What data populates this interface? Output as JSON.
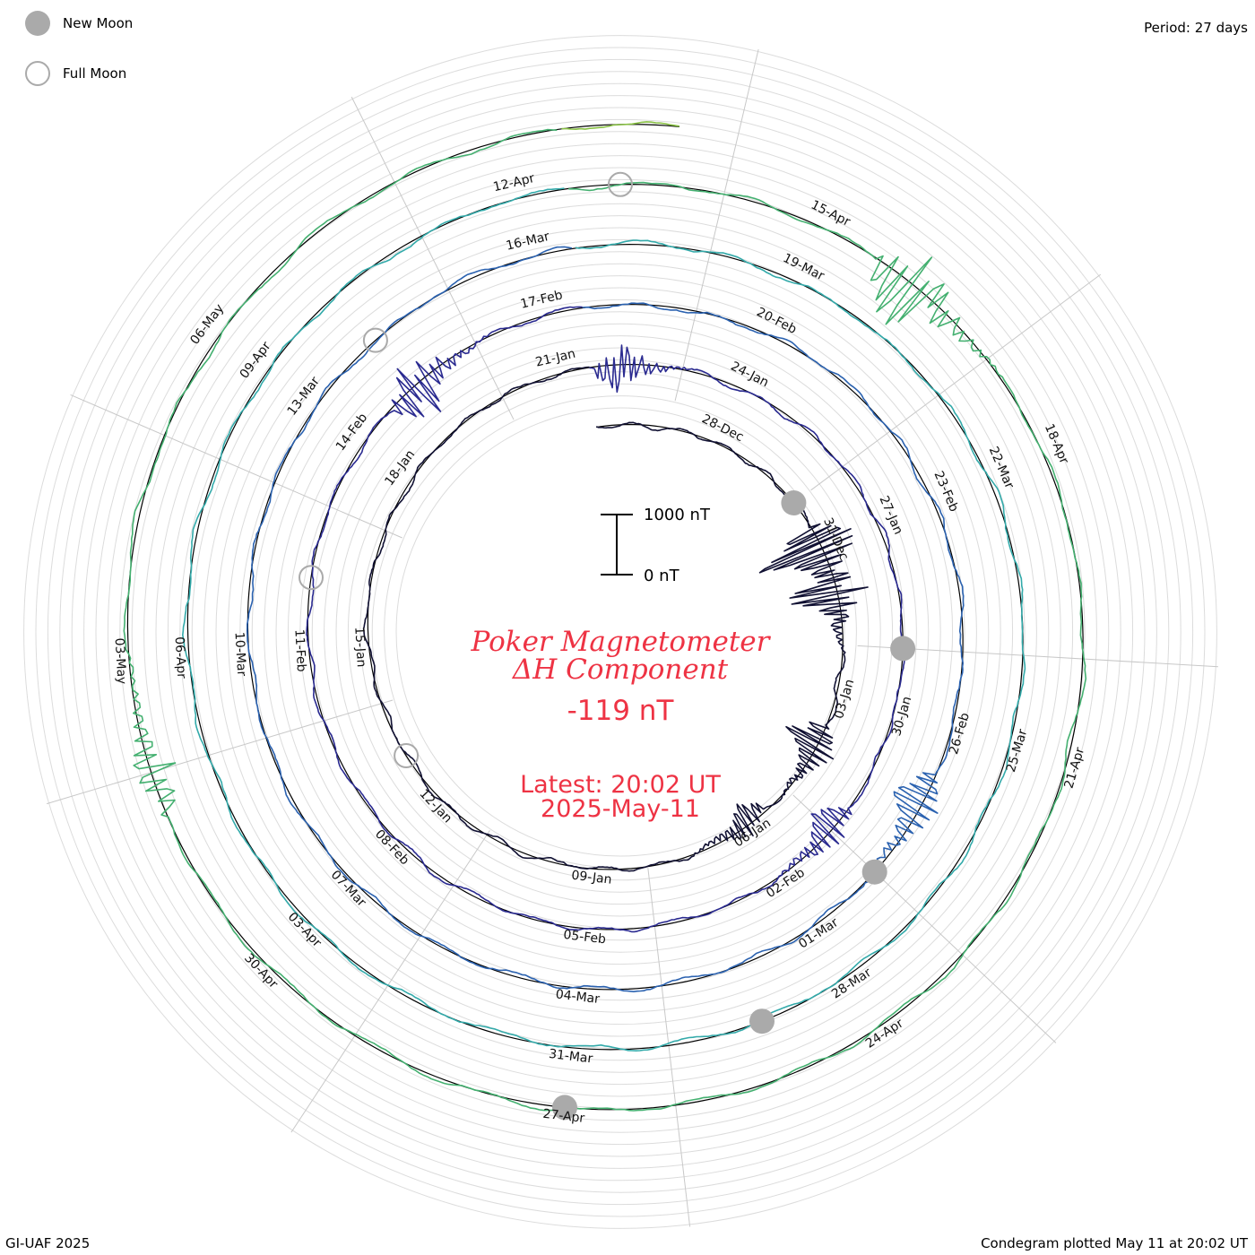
{
  "legend": {
    "new_moon_label": "New Moon",
    "full_moon_label": "Full Moon",
    "new_moon_color": "#aaaaaa",
    "full_moon_edge": "#aaaaaa"
  },
  "header": {
    "period_label": "Period: 27 days"
  },
  "footer": {
    "credit": "GI-UAF 2025",
    "plotted": "Condegram plotted May 11 at 20:02 UT"
  },
  "center": {
    "title_line1": "Poker Magnetometer",
    "title_line2": "ΔH Component",
    "value": "-119 nT",
    "latest_line1": "Latest: 20:02 UT",
    "latest_line2": "2025-May-11",
    "text_color": "#ee3344"
  },
  "scale_bar": {
    "top_label": "1000 nT",
    "bottom_label": "0 nT",
    "value_nT": 1000
  },
  "chart_data": {
    "type": "line",
    "form": "spiral condegram",
    "period_days": 27,
    "start_date": "2024-12-26",
    "end_date": "2025-05-11",
    "latest_value_nT": -119,
    "rotation_colors": [
      "#111133",
      "#2a2a90",
      "#2b62b0",
      "#33aaaa",
      "#44b070",
      "#88c044",
      "#b8a838",
      "#c86b1e",
      "#b02418"
    ],
    "date_labels": [
      {
        "text": "28-Dec",
        "day": 2
      },
      {
        "text": "31-Dec",
        "day": 5
      },
      {
        "text": "03-Jan",
        "day": 8
      },
      {
        "text": "06-Jan",
        "day": 11
      },
      {
        "text": "09-Jan",
        "day": 14
      },
      {
        "text": "12-Jan",
        "day": 17
      },
      {
        "text": "15-Jan",
        "day": 20
      },
      {
        "text": "18-Jan",
        "day": 23
      },
      {
        "text": "21-Jan",
        "day": 26
      },
      {
        "text": "24-Jan",
        "day": 29
      },
      {
        "text": "27-Jan",
        "day": 32
      },
      {
        "text": "30-Jan",
        "day": 35
      },
      {
        "text": "02-Feb",
        "day": 38
      },
      {
        "text": "05-Feb",
        "day": 41
      },
      {
        "text": "08-Feb",
        "day": 44
      },
      {
        "text": "11-Feb",
        "day": 47
      },
      {
        "text": "14-Feb",
        "day": 50
      },
      {
        "text": "17-Feb",
        "day": 53
      },
      {
        "text": "20-Feb",
        "day": 56
      },
      {
        "text": "23-Feb",
        "day": 59
      },
      {
        "text": "26-Feb",
        "day": 62
      },
      {
        "text": "01-Mar",
        "day": 65
      },
      {
        "text": "04-Mar",
        "day": 68
      },
      {
        "text": "07-Mar",
        "day": 71
      },
      {
        "text": "10-Mar",
        "day": 74
      },
      {
        "text": "13-Mar",
        "day": 77
      },
      {
        "text": "16-Mar",
        "day": 80
      },
      {
        "text": "19-Mar",
        "day": 83
      },
      {
        "text": "22-Mar",
        "day": 86
      },
      {
        "text": "25-Mar",
        "day": 89
      },
      {
        "text": "28-Mar",
        "day": 92
      },
      {
        "text": "31-Mar",
        "day": 95
      },
      {
        "text": "03-Apr",
        "day": 98
      },
      {
        "text": "06-Apr",
        "day": 101
      },
      {
        "text": "09-Apr",
        "day": 104
      },
      {
        "text": "12-Apr",
        "day": 107
      },
      {
        "text": "15-Apr",
        "day": 110
      },
      {
        "text": "18-Apr",
        "day": 113
      },
      {
        "text": "21-Apr",
        "day": 116
      },
      {
        "text": "24-Apr",
        "day": 119
      },
      {
        "text": "27-Apr",
        "day": 122
      },
      {
        "text": "30-Apr",
        "day": 125
      },
      {
        "text": "03-May",
        "day": 128
      },
      {
        "text": "06-May",
        "day": 131
      }
    ],
    "new_moons": [
      "2024-12-30",
      "2025-01-29",
      "2025-02-28",
      "2025-03-29",
      "2025-04-27"
    ],
    "full_moons": [
      "2025-01-13",
      "2025-02-12",
      "2025-03-14",
      "2025-04-13"
    ],
    "disturbances_nT": [
      {
        "date": "2024-12-31",
        "peak_nT": 1150
      },
      {
        "date": "2025-01-01",
        "peak_nT": 700
      },
      {
        "date": "2025-01-04",
        "peak_nT": 600
      },
      {
        "date": "2025-01-06",
        "peak_nT": 350
      },
      {
        "date": "2025-01-22",
        "peak_nT": 450
      },
      {
        "date": "2025-02-01",
        "peak_nT": 450
      },
      {
        "date": "2025-02-15",
        "peak_nT": 600
      },
      {
        "date": "2025-02-27",
        "peak_nT": 550
      },
      {
        "date": "2025-04-16",
        "peak_nT": 800
      },
      {
        "date": "2025-05-02",
        "peak_nT": 400
      }
    ]
  }
}
